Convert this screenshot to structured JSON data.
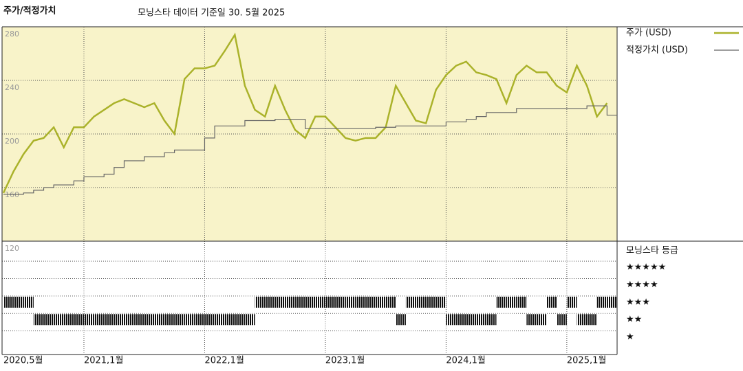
{
  "chart_data": {
    "type": "line",
    "title": "주가/적정가치",
    "subtitle": "모닝스타 데이터 기준일 30. 5월 2025",
    "x": [
      "2020-05",
      "2020-06",
      "2020-07",
      "2020-08",
      "2020-09",
      "2020-10",
      "2020-11",
      "2020-12",
      "2021-01",
      "2021-02",
      "2021-03",
      "2021-04",
      "2021-05",
      "2021-06",
      "2021-07",
      "2021-08",
      "2021-09",
      "2021-10",
      "2021-11",
      "2021-12",
      "2022-01",
      "2022-02",
      "2022-03",
      "2022-04",
      "2022-05",
      "2022-06",
      "2022-07",
      "2022-08",
      "2022-09",
      "2022-10",
      "2022-11",
      "2022-12",
      "2023-01",
      "2023-02",
      "2023-03",
      "2023-04",
      "2023-05",
      "2023-06",
      "2023-07",
      "2023-08",
      "2023-09",
      "2023-10",
      "2023-11",
      "2023-12",
      "2024-01",
      "2024-02",
      "2024-03",
      "2024-04",
      "2024-05",
      "2024-06",
      "2024-07",
      "2024-08",
      "2024-09",
      "2024-10",
      "2024-11",
      "2024-12",
      "2025-01",
      "2025-02",
      "2025-03",
      "2025-04",
      "2025-05"
    ],
    "xlim": [
      "2020-05",
      "2025-06"
    ],
    "xticks": [
      {
        "value": "2020-05",
        "label": "2020,5월"
      },
      {
        "value": "2021-01",
        "label": "2021,1월"
      },
      {
        "value": "2022-01",
        "label": "2022,1월"
      },
      {
        "value": "2023-01",
        "label": "2023,1월"
      },
      {
        "value": "2024-01",
        "label": "2024,1월"
      },
      {
        "value": "2025-01",
        "label": "2025,1월"
      }
    ],
    "ylim": [
      120,
      280
    ],
    "yticks": [
      120,
      160,
      200,
      240,
      280
    ],
    "grid": true,
    "series": [
      {
        "name": "주가 (USD)",
        "color": "#aab22a",
        "values": [
          156,
          172,
          185,
          195,
          197,
          205,
          190,
          205,
          205,
          213,
          218,
          223,
          226,
          223,
          220,
          223,
          210,
          200,
          241,
          249,
          249,
          251,
          262,
          274,
          236,
          218,
          213,
          236,
          218,
          203,
          197,
          213,
          213,
          205,
          197,
          195,
          197,
          197,
          205,
          236,
          223,
          210,
          208,
          233,
          244,
          251,
          254,
          246,
          244,
          241,
          223,
          244,
          251,
          246,
          246,
          236,
          231,
          251,
          236,
          213,
          223
        ]
      },
      {
        "name": "적정가치 (USD)",
        "color": "#666666",
        "step": true,
        "values": [
          155,
          155,
          156,
          158,
          160,
          162,
          162,
          165,
          168,
          168,
          170,
          175,
          180,
          180,
          183,
          183,
          186,
          188,
          188,
          188,
          197,
          206,
          206,
          206,
          210,
          210,
          210,
          211,
          211,
          211,
          204,
          204,
          204,
          204,
          204,
          204,
          204,
          205,
          205,
          206,
          206,
          206,
          206,
          206,
          209,
          209,
          211,
          213,
          216,
          216,
          216,
          219,
          219,
          219,
          219,
          219,
          219,
          219,
          221,
          221,
          214
        ]
      }
    ],
    "rating_title": "모닝스타 등급",
    "rating_lim": [
      0,
      6.5
    ],
    "rating_ticks": [
      {
        "value": 5,
        "label": "★★★★★"
      },
      {
        "value": 4,
        "label": "★★★★"
      },
      {
        "value": 3,
        "label": "★★★"
      },
      {
        "value": 2,
        "label": "★★"
      },
      {
        "value": 1,
        "label": "★"
      }
    ],
    "ratings": [
      3,
      3,
      3,
      2,
      2,
      2,
      2,
      2,
      2,
      2,
      2,
      2,
      2,
      2,
      2,
      2,
      2,
      2,
      2,
      2,
      2,
      2,
      2,
      2,
      2,
      3,
      3,
      3,
      3,
      3,
      3,
      3,
      3,
      3,
      3,
      3,
      3,
      3,
      3,
      2,
      3,
      3,
      3,
      3,
      2,
      2,
      2,
      2,
      2,
      3,
      3,
      3,
      2,
      2,
      3,
      2,
      3,
      2,
      2,
      3,
      3
    ]
  }
}
